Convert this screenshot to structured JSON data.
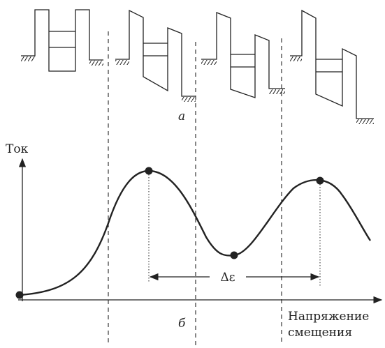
{
  "labels": {
    "a": "а",
    "b": "б",
    "delta": "Δε"
  },
  "y_axis": {
    "label": "Ток"
  },
  "x_axis": {
    "label_lines": [
      "Напряжение",
      "смещения"
    ]
  }
}
